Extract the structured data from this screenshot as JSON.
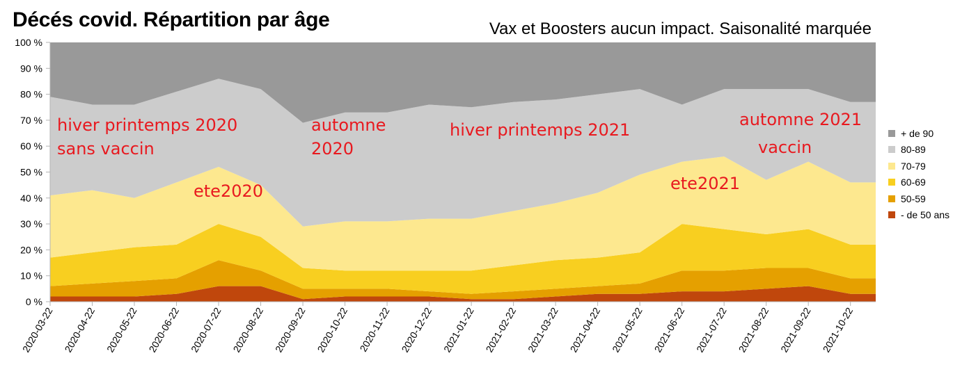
{
  "title": "Décés covid. Répartition par âge",
  "subtitle": "Vax et Boosters aucun impact. Saisonalité marquée",
  "chart_data": {
    "type": "area",
    "stacked": true,
    "normalized": true,
    "x": [
      "2020-03-22",
      "2020-04-22",
      "2020-05-22",
      "2020-06-22",
      "2020-07-22",
      "2020-08-22",
      "2020-09-22",
      "2020-10-22",
      "2020-11-22",
      "2020-12-22",
      "2021-01-22",
      "2021-02-22",
      "2021-03-22",
      "2021-04-22",
      "2021-05-22",
      "2021-06-22",
      "2021-07-22",
      "2021-08-22",
      "2021-09-22",
      "2021-10-22"
    ],
    "x_end": "2021-11-10",
    "ylim": [
      0,
      100
    ],
    "y_ticks": [
      "0 %",
      "10 %",
      "20 %",
      "30 %",
      "40 %",
      "50 %",
      "60 %",
      "70 %",
      "80 %",
      "90 %",
      "100 %"
    ],
    "legend_position": "right",
    "series": [
      {
        "name": "- de 50 ans",
        "color": "#c0470c",
        "values": [
          2,
          2,
          2,
          3,
          6,
          6,
          1,
          2,
          2,
          2,
          1,
          1,
          2,
          3,
          3,
          4,
          4,
          5,
          6,
          3
        ]
      },
      {
        "name": "50-59",
        "color": "#e5a000",
        "values": [
          4,
          5,
          6,
          6,
          10,
          6,
          4,
          3,
          3,
          2,
          2,
          3,
          3,
          3,
          4,
          8,
          8,
          8,
          7,
          6
        ]
      },
      {
        "name": "60-69",
        "color": "#f8cf20",
        "values": [
          11,
          12,
          13,
          13,
          14,
          13,
          8,
          7,
          7,
          8,
          9,
          10,
          11,
          11,
          12,
          18,
          16,
          13,
          15,
          13
        ]
      },
      {
        "name": "70-79",
        "color": "#fde88f",
        "values": [
          24,
          24,
          19,
          24,
          22,
          20,
          16,
          19,
          19,
          20,
          20,
          21,
          22,
          25,
          30,
          24,
          28,
          21,
          26,
          24
        ]
      },
      {
        "name": "80-89",
        "color": "#cccccc",
        "values": [
          38,
          33,
          36,
          35,
          34,
          37,
          40,
          42,
          42,
          44,
          43,
          42,
          40,
          38,
          33,
          22,
          26,
          35,
          28,
          31
        ]
      },
      {
        "name": "+ de 90",
        "color": "#999999",
        "values": [
          21,
          24,
          24,
          19,
          14,
          18,
          31,
          27,
          27,
          24,
          25,
          23,
          22,
          20,
          18,
          24,
          18,
          18,
          18,
          23
        ]
      }
    ],
    "annotations": [
      {
        "text": "hiver  printemps 2020",
        "color": "#e8191f"
      },
      {
        "text": "sans vaccin",
        "color": "#e8191f"
      },
      {
        "text": "ete2020",
        "color": "#e8191f"
      },
      {
        "text": "automne",
        "color": "#e8191f"
      },
      {
        "text": "2020",
        "color": "#e8191f"
      },
      {
        "text": "hiver printemps 2021",
        "color": "#e8191f"
      },
      {
        "text": "ete2021",
        "color": "#e8191f"
      },
      {
        "text": "automne 2021",
        "color": "#e8191f"
      },
      {
        "text": "vaccin",
        "color": "#e8191f"
      }
    ]
  }
}
